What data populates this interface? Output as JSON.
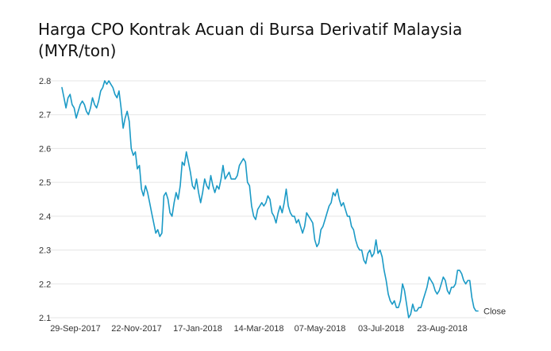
{
  "chart_data": {
    "type": "line",
    "title": "Harga CPO Kontrak Acuan di Bursa Derivatif Malaysia (MYR/ton)",
    "xlabel": "",
    "ylabel": "",
    "ylim": [
      2.1,
      2.8
    ],
    "yticks": [
      "2.8",
      "2.7",
      "2.6",
      "2.5",
      "2.4",
      "2.3",
      "2.2",
      "2.1"
    ],
    "xticks": [
      "29-Sep-2017",
      "22-Nov-2017",
      "17-Jan-2018",
      "14-Mar-2018",
      "07-May-2018",
      "03-Jul-2018",
      "23-Aug-2018"
    ],
    "grid": "horizontal",
    "legend": "none",
    "series": [
      {
        "end_label": "Close",
        "color": "#1b9ac6",
        "values": [
          2.78,
          2.75,
          2.72,
          2.75,
          2.76,
          2.73,
          2.72,
          2.69,
          2.71,
          2.73,
          2.74,
          2.73,
          2.71,
          2.7,
          2.72,
          2.75,
          2.73,
          2.72,
          2.74,
          2.77,
          2.78,
          2.8,
          2.79,
          2.8,
          2.79,
          2.78,
          2.76,
          2.75,
          2.77,
          2.72,
          2.66,
          2.69,
          2.71,
          2.68,
          2.6,
          2.58,
          2.59,
          2.54,
          2.55,
          2.48,
          2.46,
          2.49,
          2.47,
          2.44,
          2.41,
          2.38,
          2.35,
          2.36,
          2.34,
          2.35,
          2.46,
          2.47,
          2.45,
          2.41,
          2.4,
          2.44,
          2.47,
          2.45,
          2.49,
          2.56,
          2.55,
          2.59,
          2.56,
          2.53,
          2.49,
          2.48,
          2.51,
          2.47,
          2.44,
          2.47,
          2.51,
          2.49,
          2.48,
          2.52,
          2.49,
          2.47,
          2.49,
          2.48,
          2.51,
          2.55,
          2.51,
          2.52,
          2.53,
          2.51,
          2.51,
          2.51,
          2.52,
          2.55,
          2.56,
          2.57,
          2.56,
          2.5,
          2.49,
          2.43,
          2.4,
          2.39,
          2.42,
          2.43,
          2.44,
          2.43,
          2.44,
          2.46,
          2.45,
          2.41,
          2.4,
          2.38,
          2.41,
          2.43,
          2.41,
          2.44,
          2.48,
          2.43,
          2.41,
          2.4,
          2.4,
          2.38,
          2.39,
          2.37,
          2.35,
          2.37,
          2.41,
          2.4,
          2.39,
          2.38,
          2.33,
          2.31,
          2.32,
          2.36,
          2.37,
          2.39,
          2.41,
          2.43,
          2.44,
          2.47,
          2.46,
          2.48,
          2.45,
          2.43,
          2.44,
          2.42,
          2.4,
          2.4,
          2.37,
          2.36,
          2.33,
          2.31,
          2.3,
          2.3,
          2.27,
          2.26,
          2.29,
          2.3,
          2.28,
          2.29,
          2.33,
          2.29,
          2.3,
          2.28,
          2.24,
          2.21,
          2.17,
          2.15,
          2.14,
          2.15,
          2.13,
          2.13,
          2.15,
          2.2,
          2.18,
          2.14,
          2.1,
          2.11,
          2.14,
          2.12,
          2.12,
          2.13,
          2.13,
          2.15,
          2.17,
          2.19,
          2.22,
          2.21,
          2.2,
          2.18,
          2.17,
          2.18,
          2.2,
          2.22,
          2.21,
          2.18,
          2.17,
          2.19,
          2.19,
          2.2,
          2.24,
          2.24,
          2.23,
          2.21,
          2.2,
          2.21,
          2.21,
          2.16,
          2.13,
          2.12,
          2.12
        ]
      }
    ]
  }
}
